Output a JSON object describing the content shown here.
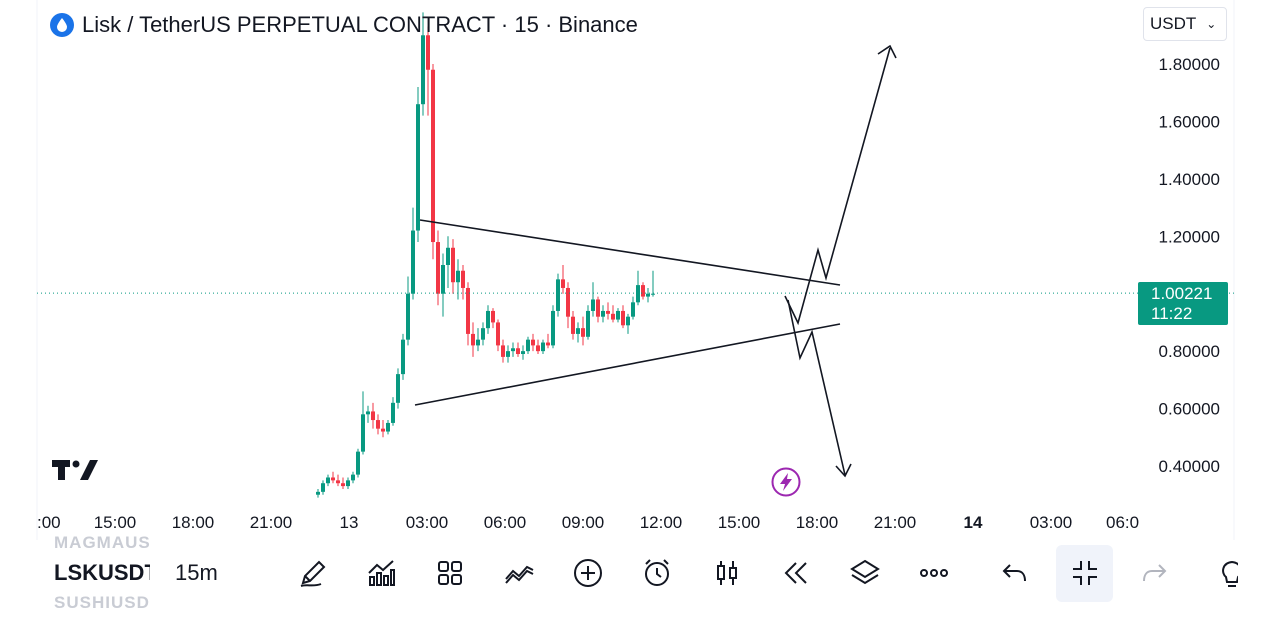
{
  "header": {
    "title": "Lisk / TetherUS PERPETUAL CONTRACT · 15 · Binance",
    "coin_icon": "lisk-drop-icon"
  },
  "currency_select": {
    "value": "USDT"
  },
  "price_label": {
    "price": "1.00221",
    "countdown": "11:22",
    "color": "#089981"
  },
  "toolbar": {
    "symbol": "LSKUSDT",
    "interval": "15m",
    "ghost_above": "MAGMAUSDT",
    "ghost_below": "SUSHIUSDT",
    "icons": [
      "pen-icon",
      "indicators-icon",
      "templates-icon",
      "drawings-icon",
      "add-icon",
      "alert-icon",
      "bar-style-icon",
      "replay-icon",
      "layers-icon",
      "more-icon",
      "undo-icon",
      "collapse-icon",
      "redo-icon",
      "lightbulb-icon"
    ]
  },
  "colors": {
    "up": "#089981",
    "down": "#f23645",
    "text": "#131722",
    "dotted": "#089981"
  },
  "chart_data": {
    "type": "candlestick",
    "y_ticks": [
      "1.80000",
      "1.60000",
      "1.40000",
      "1.20000",
      "0.80000",
      "0.60000",
      "0.40000"
    ],
    "y_tick_values": [
      1.8,
      1.6,
      1.4,
      1.2,
      0.8,
      0.6,
      0.4
    ],
    "x_ticks": [
      ":00",
      "15:00",
      "18:00",
      "21:00",
      "13",
      "03:00",
      "06:00",
      "09:00",
      "12:00",
      "15:00",
      "18:00",
      "21:00",
      "14",
      "03:00",
      "06:0"
    ],
    "x_ticks_bold": [
      "14"
    ],
    "ylim": [
      0.3,
      1.95
    ],
    "last_price": 1.00221,
    "candles": [
      [
        300,
        0.3,
        0.32,
        0.29,
        0.31
      ],
      [
        305,
        0.31,
        0.35,
        0.3,
        0.34
      ],
      [
        310,
        0.34,
        0.37,
        0.33,
        0.36
      ],
      [
        315,
        0.36,
        0.38,
        0.34,
        0.35
      ],
      [
        320,
        0.35,
        0.37,
        0.33,
        0.34
      ],
      [
        325,
        0.34,
        0.36,
        0.32,
        0.33
      ],
      [
        330,
        0.33,
        0.36,
        0.32,
        0.35
      ],
      [
        335,
        0.35,
        0.38,
        0.34,
        0.37
      ],
      [
        340,
        0.37,
        0.46,
        0.36,
        0.45
      ],
      [
        345,
        0.45,
        0.66,
        0.44,
        0.58
      ],
      [
        350,
        0.58,
        0.61,
        0.55,
        0.59
      ],
      [
        355,
        0.59,
        0.62,
        0.53,
        0.56
      ],
      [
        360,
        0.56,
        0.58,
        0.51,
        0.53
      ],
      [
        365,
        0.53,
        0.56,
        0.5,
        0.52
      ],
      [
        370,
        0.52,
        0.56,
        0.51,
        0.55
      ],
      [
        375,
        0.55,
        0.64,
        0.54,
        0.62
      ],
      [
        380,
        0.62,
        0.74,
        0.6,
        0.72
      ],
      [
        385,
        0.72,
        0.86,
        0.7,
        0.84
      ],
      [
        390,
        0.84,
        1.06,
        0.82,
        1.0
      ],
      [
        395,
        1.0,
        1.3,
        0.98,
        1.22
      ],
      [
        400,
        1.22,
        1.72,
        1.18,
        1.66
      ],
      [
        405,
        1.66,
        1.98,
        1.62,
        1.9
      ],
      [
        410,
        1.9,
        1.93,
        1.62,
        1.78
      ],
      [
        415,
        1.78,
        1.8,
        1.12,
        1.18
      ],
      [
        420,
        1.18,
        1.22,
        0.96,
        1.0
      ],
      [
        425,
        1.0,
        1.14,
        0.92,
        1.1
      ],
      [
        430,
        1.1,
        1.2,
        1.02,
        1.16
      ],
      [
        435,
        1.16,
        1.19,
        1.0,
        1.04
      ],
      [
        440,
        1.04,
        1.12,
        0.98,
        1.08
      ],
      [
        445,
        1.08,
        1.1,
        0.98,
        1.02
      ],
      [
        450,
        1.02,
        1.04,
        0.82,
        0.86
      ],
      [
        455,
        0.86,
        0.9,
        0.78,
        0.82
      ],
      [
        460,
        0.82,
        0.88,
        0.8,
        0.84
      ],
      [
        465,
        0.84,
        0.9,
        0.82,
        0.88
      ],
      [
        470,
        0.88,
        0.96,
        0.86,
        0.94
      ],
      [
        475,
        0.94,
        0.95,
        0.88,
        0.9
      ],
      [
        480,
        0.9,
        0.91,
        0.8,
        0.82
      ],
      [
        485,
        0.82,
        0.84,
        0.76,
        0.78
      ],
      [
        490,
        0.78,
        0.82,
        0.76,
        0.8
      ],
      [
        495,
        0.8,
        0.83,
        0.78,
        0.81
      ],
      [
        500,
        0.81,
        0.83,
        0.78,
        0.79
      ],
      [
        505,
        0.79,
        0.82,
        0.77,
        0.8
      ],
      [
        510,
        0.8,
        0.85,
        0.79,
        0.84
      ],
      [
        515,
        0.84,
        0.86,
        0.8,
        0.82
      ],
      [
        520,
        0.82,
        0.84,
        0.79,
        0.8
      ],
      [
        525,
        0.8,
        0.84,
        0.79,
        0.83
      ],
      [
        530,
        0.83,
        0.86,
        0.81,
        0.82
      ],
      [
        535,
        0.82,
        0.96,
        0.81,
        0.94
      ],
      [
        540,
        0.94,
        1.07,
        0.92,
        1.05
      ],
      [
        545,
        1.05,
        1.1,
        1.0,
        1.02
      ],
      [
        550,
        1.02,
        1.04,
        0.88,
        0.92
      ],
      [
        555,
        0.92,
        0.94,
        0.84,
        0.86
      ],
      [
        560,
        0.86,
        0.9,
        0.83,
        0.88
      ],
      [
        565,
        0.88,
        0.92,
        0.82,
        0.85
      ],
      [
        570,
        0.85,
        0.96,
        0.84,
        0.94
      ],
      [
        575,
        0.94,
        1.04,
        0.92,
        0.98
      ],
      [
        580,
        0.98,
        0.99,
        0.9,
        0.92
      ],
      [
        585,
        0.92,
        0.96,
        0.9,
        0.94
      ],
      [
        590,
        0.94,
        0.97,
        0.91,
        0.93
      ],
      [
        595,
        0.93,
        0.96,
        0.9,
        0.91
      ],
      [
        600,
        0.91,
        0.95,
        0.9,
        0.94
      ],
      [
        605,
        0.94,
        0.96,
        0.88,
        0.89
      ],
      [
        610,
        0.89,
        0.93,
        0.86,
        0.92
      ],
      [
        615,
        0.92,
        0.99,
        0.91,
        0.97
      ],
      [
        620,
        0.97,
        1.08,
        0.96,
        1.03
      ],
      [
        625,
        1.03,
        1.04,
        0.98,
        0.99
      ],
      [
        630,
        0.99,
        1.02,
        0.97,
        1.0
      ],
      [
        635,
        1.0,
        1.08,
        0.99,
        1.0
      ]
    ],
    "triangle_upper": [
      [
        1.25,
        420
      ],
      [
        1.03,
        840
      ]
    ],
    "triangle_lower": [
      [
        0.63,
        415
      ],
      [
        0.9,
        840
      ]
    ],
    "arrows": [
      "breakout-up",
      "breakdown-down"
    ]
  }
}
